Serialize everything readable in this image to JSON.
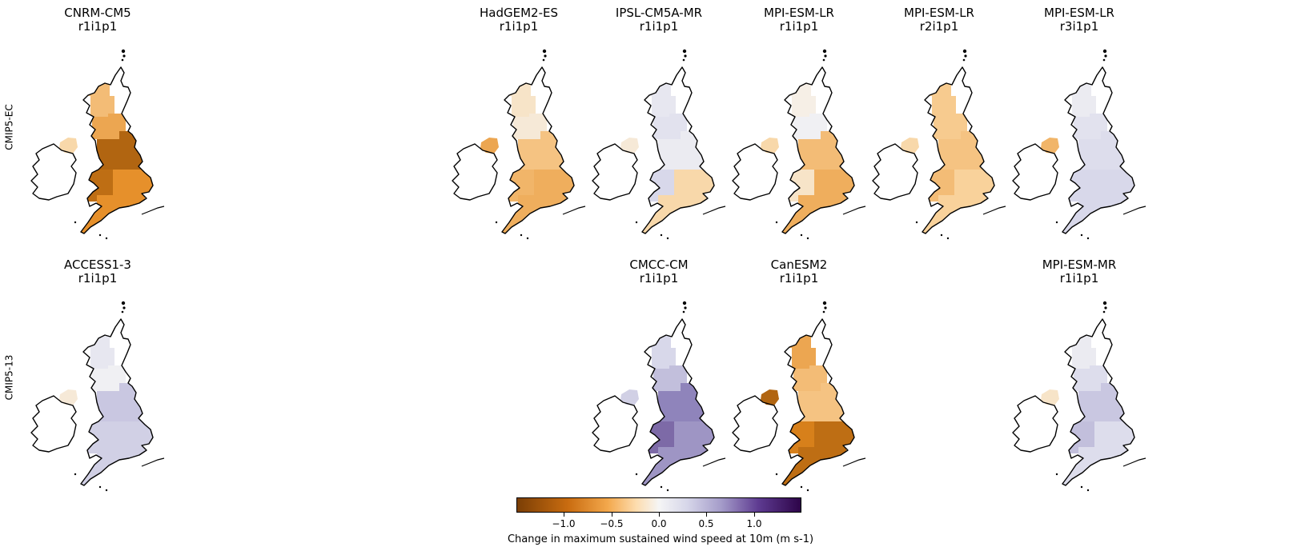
{
  "row_labels": [
    "CMIP5-EC",
    "CMIP5-13"
  ],
  "palette": {
    "neg_strong": "#8b4a06",
    "neg_mid": "#e4891f",
    "neg_light": "#f9d29b",
    "neutral": "#f5f5f5",
    "pos_light": "#d8d8ea",
    "pos_mid": "#8f84bb",
    "pos_strong": "#3b0a5c"
  },
  "panels": [
    {
      "model": "CNRM-CM5",
      "run": "r1i1p1",
      "row": 0,
      "col": 0,
      "north_scotland": -0.45,
      "south_scotland": -0.6,
      "north_england": -1.2,
      "wales": -1.1,
      "south_england": -0.75,
      "northern_ireland": -0.25
    },
    {
      "model": "HadGEM2-ES",
      "run": "r1i1p1",
      "row": 0,
      "col": 3,
      "north_scotland": -0.15,
      "south_scotland": -0.1,
      "north_england": -0.4,
      "wales": -0.5,
      "south_england": -0.55,
      "northern_ireland": -0.6
    },
    {
      "model": "IPSL-CM5A-MR",
      "run": "r1i1p1",
      "row": 0,
      "col": 4,
      "north_scotland": 0.15,
      "south_scotland": 0.2,
      "north_england": 0.1,
      "wales": 0.3,
      "south_england": -0.25,
      "northern_ireland": -0.1
    },
    {
      "model": "MPI-ESM-LR",
      "run": "r1i1p1",
      "row": 0,
      "col": 5,
      "north_scotland": -0.05,
      "south_scotland": 0.05,
      "north_england": -0.45,
      "wales": -0.15,
      "south_england": -0.55,
      "northern_ireland": -0.25
    },
    {
      "model": "MPI-ESM-LR",
      "run": "r2i1p1",
      "row": 0,
      "col": 6,
      "north_scotland": -0.35,
      "south_scotland": -0.35,
      "north_england": -0.4,
      "wales": -0.45,
      "south_england": -0.3,
      "northern_ireland": -0.25
    },
    {
      "model": "MPI-ESM-LR",
      "run": "r3i1p1",
      "row": 0,
      "col": 7,
      "north_scotland": 0.1,
      "south_scotland": 0.2,
      "north_england": 0.25,
      "wales": 0.3,
      "south_england": 0.3,
      "northern_ireland": -0.5
    },
    {
      "model": "ACCESS1-3",
      "run": "r1i1p1",
      "row": 1,
      "col": 0,
      "north_scotland": 0.15,
      "south_scotland": 0.05,
      "north_england": 0.4,
      "wales": 0.35,
      "south_england": 0.35,
      "northern_ireland": -0.1
    },
    {
      "model": "CMCC-CM",
      "run": "r1i1p1",
      "row": 1,
      "col": 4,
      "north_scotland": 0.3,
      "south_scotland": 0.45,
      "north_england": 0.8,
      "wales": 0.95,
      "south_england": 0.7,
      "northern_ireland": 0.35
    },
    {
      "model": "CanESM2",
      "run": "r1i1p1",
      "row": 1,
      "col": 5,
      "north_scotland": -0.6,
      "south_scotland": -0.45,
      "north_england": -0.4,
      "wales": -0.9,
      "south_england": -1.1,
      "northern_ireland": -1.2
    },
    {
      "model": "MPI-ESM-MR",
      "run": "r1i1p1",
      "row": 1,
      "col": 7,
      "north_scotland": 0.1,
      "south_scotland": 0.25,
      "north_england": 0.4,
      "wales": 0.45,
      "south_england": 0.25,
      "northern_ireland": -0.15
    }
  ],
  "colorbar": {
    "min": -1.5,
    "max": 1.5,
    "ticks": [
      -1.0,
      -0.5,
      0.0,
      0.5,
      1.0
    ],
    "tick_labels": [
      "−1.0",
      "−0.5",
      "0.0",
      "0.5",
      "1.0"
    ],
    "label": "Change in maximum sustained wind speed at 10m (m s-1)"
  }
}
